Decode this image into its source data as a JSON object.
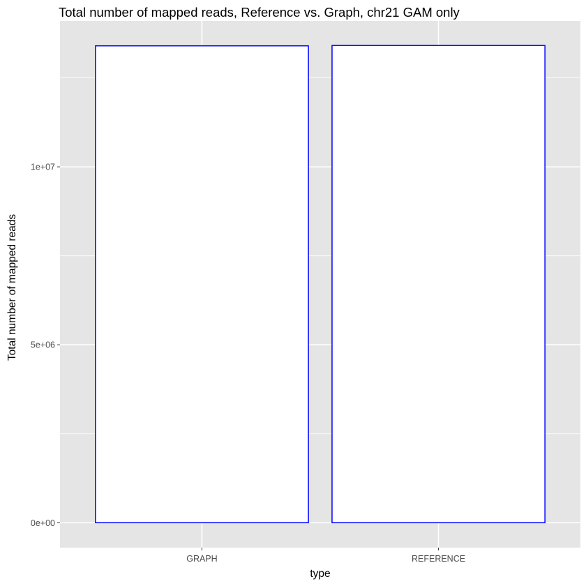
{
  "chart_data": {
    "type": "bar",
    "title": "Total number of mapped reads, Reference vs. Graph, chr21 GAM only",
    "xlabel": "type",
    "ylabel": "Total number of mapped reads",
    "categories": [
      "GRAPH",
      "REFERENCE"
    ],
    "values": [
      13400000,
      13410000
    ],
    "ylim": [
      -700000,
      14100000
    ],
    "y_ticks": [
      {
        "value": 0,
        "label": "0e+00"
      },
      {
        "value": 5000000,
        "label": "5e+06"
      },
      {
        "value": 10000000,
        "label": "1e+07"
      }
    ],
    "y_minor_ticks": [
      2500000,
      7500000,
      12500000
    ],
    "grid": true,
    "legend": "none",
    "colors": {
      "panel_background": "#e5e5e5",
      "grid_line": "#ffffff",
      "bar_fill": "#ffffff",
      "bar_outline": "#0000ff",
      "tick_mark": "#333333"
    }
  }
}
